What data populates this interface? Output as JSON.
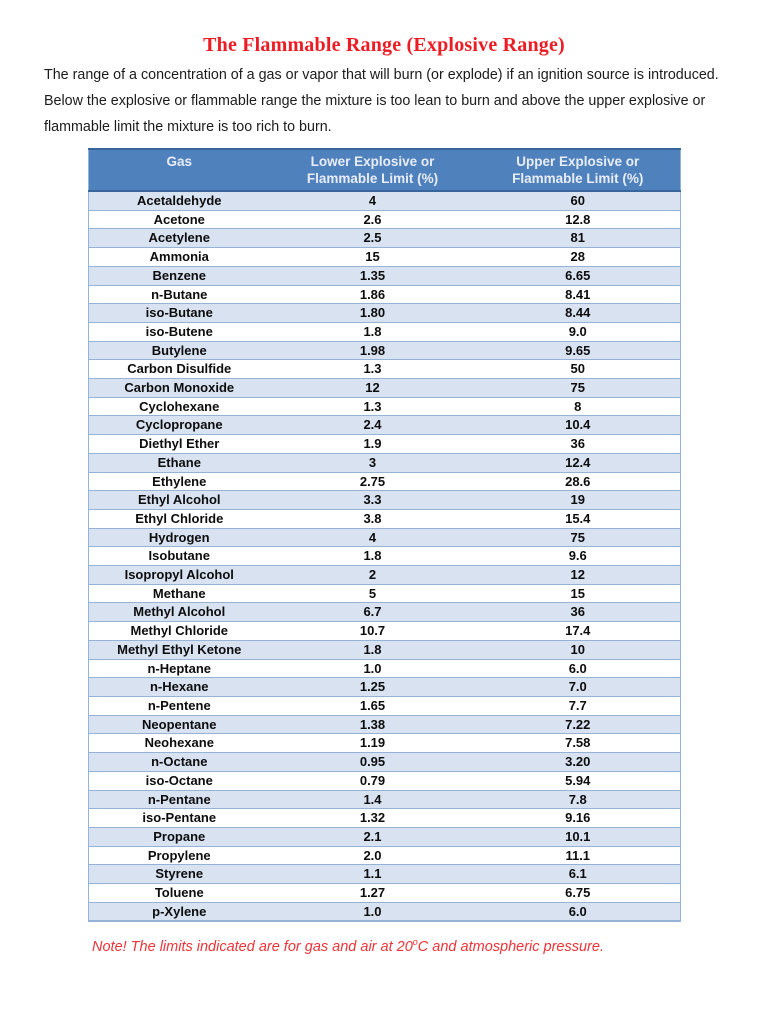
{
  "title": "The Flammable Range (Explosive Range)",
  "intro": {
    "lines": [
      "The range of a concentration of a gas or vapor that will burn (or explode) if an ignition source is introduced.",
      "Below the explosive or flammable range the mixture is too lean to burn and above the upper explosive or",
      "flammable limit the mixture is too rich to burn."
    ]
  },
  "table": {
    "headers": [
      "Gas",
      "Lower Explosive or\nFlammable Limit (%)",
      "Upper Explosive or\nFlammable Limit (%)"
    ],
    "rows": [
      [
        "Acetaldehyde",
        "4",
        "60"
      ],
      [
        "Acetone",
        "2.6",
        "12.8"
      ],
      [
        "Acetylene",
        "2.5",
        "81"
      ],
      [
        "Ammonia",
        "15",
        "28"
      ],
      [
        "Benzene",
        "1.35",
        "6.65"
      ],
      [
        "n-Butane",
        "1.86",
        "8.41"
      ],
      [
        "iso-Butane",
        "1.80",
        "8.44"
      ],
      [
        "iso-Butene",
        "1.8",
        "9.0"
      ],
      [
        "Butylene",
        "1.98",
        "9.65"
      ],
      [
        "Carbon Disulfide",
        "1.3",
        "50"
      ],
      [
        "Carbon Monoxide",
        "12",
        "75"
      ],
      [
        "Cyclohexane",
        "1.3",
        "8"
      ],
      [
        "Cyclopropane",
        "2.4",
        "10.4"
      ],
      [
        "Diethyl Ether",
        "1.9",
        "36"
      ],
      [
        "Ethane",
        "3",
        "12.4"
      ],
      [
        "Ethylene",
        "2.75",
        "28.6"
      ],
      [
        "Ethyl Alcohol",
        "3.3",
        "19"
      ],
      [
        "Ethyl Chloride",
        "3.8",
        "15.4"
      ],
      [
        "Hydrogen",
        "4",
        "75"
      ],
      [
        "Isobutane",
        "1.8",
        "9.6"
      ],
      [
        "Isopropyl Alcohol",
        "2",
        "12"
      ],
      [
        "Methane",
        "5",
        "15"
      ],
      [
        "Methyl Alcohol",
        "6.7",
        "36"
      ],
      [
        "Methyl Chloride",
        "10.7",
        "17.4"
      ],
      [
        "Methyl Ethyl Ketone",
        "1.8",
        "10"
      ],
      [
        "n-Heptane",
        "1.0",
        "6.0"
      ],
      [
        "n-Hexane",
        "1.25",
        "7.0"
      ],
      [
        "n-Pentene",
        "1.65",
        "7.7"
      ],
      [
        "Neopentane",
        "1.38",
        "7.22"
      ],
      [
        "Neohexane",
        "1.19",
        "7.58"
      ],
      [
        "n-Octane",
        "0.95",
        "3.20"
      ],
      [
        "iso-Octane",
        "0.79",
        "5.94"
      ],
      [
        "n-Pentane",
        "1.4",
        "7.8"
      ],
      [
        "iso-Pentane",
        "1.32",
        "9.16"
      ],
      [
        "Propane",
        "2.1",
        "10.1"
      ],
      [
        "Propylene",
        "2.0",
        "11.1"
      ],
      [
        "Styrene",
        "1.1",
        "6.1"
      ],
      [
        "Toluene",
        "1.27",
        "6.75"
      ],
      [
        "p-Xylene",
        "1.0",
        "6.0"
      ]
    ]
  },
  "note": {
    "prefix": "Note! The limits indicated are for gas and air at 20",
    "sup": "o",
    "suffix": "C and atmospheric pressure."
  },
  "colors": {
    "header_bg": "#4f81bd",
    "header_text": "#e9edf8",
    "row_alt_bg": "#d8e2f1",
    "row_border": "#95b3d7",
    "header_border": "#38659b",
    "title_red": "#ed1c24",
    "note_red": "#ee3338",
    "body_text": "#1b1b1b"
  }
}
